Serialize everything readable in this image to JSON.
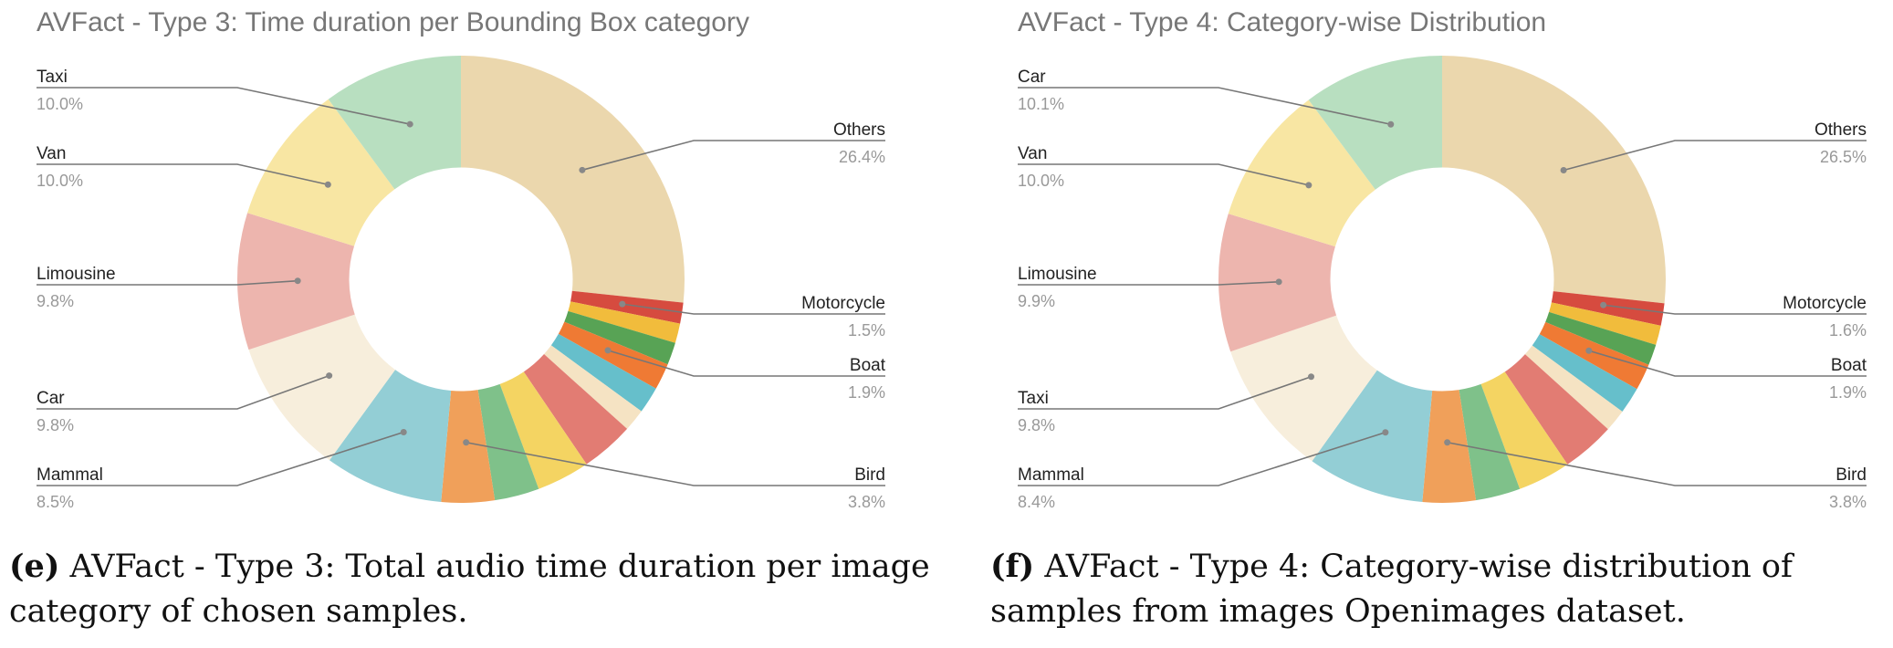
{
  "chart_data": [
    {
      "type": "pie",
      "title": "AVFact - Type 3: Time duration per Bounding Box category",
      "caption_label": "(e)",
      "caption_text": "AVFact - Type 3: Total audio time duration per image category of chosen samples.",
      "hole": 0.5,
      "slices": [
        {
          "label": "Others",
          "value": 26.4,
          "display": "26.4%",
          "color": "#ebd7ad"
        },
        {
          "label": "Motorcycle",
          "value": 1.5,
          "display": "1.5%",
          "color": "#d64b3f"
        },
        {
          "label": "",
          "value": 1.4,
          "display": "",
          "color": "#f1bc3c"
        },
        {
          "label": "",
          "value": 1.6,
          "display": "",
          "color": "#58a355"
        },
        {
          "label": "Boat",
          "value": 1.9,
          "display": "1.9%",
          "color": "#ef7a34"
        },
        {
          "label": "",
          "value": 1.9,
          "display": "",
          "color": "#66bfcb"
        },
        {
          "label": "",
          "value": 1.6,
          "display": "",
          "color": "#f5e3c3"
        },
        {
          "label": "",
          "value": 3.8,
          "display": "",
          "color": "#e27c73"
        },
        {
          "label": "",
          "value": 3.8,
          "display": "",
          "color": "#f4d462"
        },
        {
          "label": "",
          "value": 3.2,
          "display": "",
          "color": "#7fc18a"
        },
        {
          "label": "Bird",
          "value": 3.8,
          "display": "3.8%",
          "color": "#f0a05a"
        },
        {
          "label": "Mammal",
          "value": 8.5,
          "display": "8.5%",
          "color": "#93ced5"
        },
        {
          "label": "Car",
          "value": 9.8,
          "display": "9.8%",
          "color": "#f7eedc"
        },
        {
          "label": "Limousine",
          "value": 9.8,
          "display": "9.8%",
          "color": "#edb5ae"
        },
        {
          "label": "Van",
          "value": 10.0,
          "display": "10.0%",
          "color": "#f8e6a3"
        },
        {
          "label": "Taxi",
          "value": 10.0,
          "display": "10.0%",
          "color": "#b8dfc0"
        }
      ]
    },
    {
      "type": "pie",
      "title": "AVFact - Type 4: Category-wise Distribution",
      "caption_label": "(f)",
      "caption_text": "AVFact - Type 4: Category-wise distribution of samples from images Openimages dataset.",
      "hole": 0.5,
      "slices": [
        {
          "label": "Others",
          "value": 26.5,
          "display": "26.5%",
          "color": "#ebd7ad"
        },
        {
          "label": "Motorcycle",
          "value": 1.6,
          "display": "1.6%",
          "color": "#d64b3f"
        },
        {
          "label": "",
          "value": 1.4,
          "display": "",
          "color": "#f1bc3c"
        },
        {
          "label": "",
          "value": 1.5,
          "display": "",
          "color": "#58a355"
        },
        {
          "label": "Boat",
          "value": 1.9,
          "display": "1.9%",
          "color": "#ef7a34"
        },
        {
          "label": "",
          "value": 1.9,
          "display": "",
          "color": "#66bfcb"
        },
        {
          "label": "",
          "value": 1.6,
          "display": "",
          "color": "#f5e3c3"
        },
        {
          "label": "",
          "value": 3.8,
          "display": "",
          "color": "#e27c73"
        },
        {
          "label": "",
          "value": 3.8,
          "display": "",
          "color": "#f4d462"
        },
        {
          "label": "",
          "value": 3.2,
          "display": "",
          "color": "#7fc18a"
        },
        {
          "label": "Bird",
          "value": 3.8,
          "display": "3.8%",
          "color": "#f0a05a"
        },
        {
          "label": "Mammal",
          "value": 8.4,
          "display": "8.4%",
          "color": "#93ced5"
        },
        {
          "label": "Taxi",
          "value": 9.8,
          "display": "9.8%",
          "color": "#f7eedc"
        },
        {
          "label": "Limousine",
          "value": 9.9,
          "display": "9.9%",
          "color": "#edb5ae"
        },
        {
          "label": "Van",
          "value": 10.0,
          "display": "10.0%",
          "color": "#f8e6a3"
        },
        {
          "label": "Car",
          "value": 10.1,
          "display": "10.1%",
          "color": "#b8dfc0"
        }
      ]
    }
  ]
}
